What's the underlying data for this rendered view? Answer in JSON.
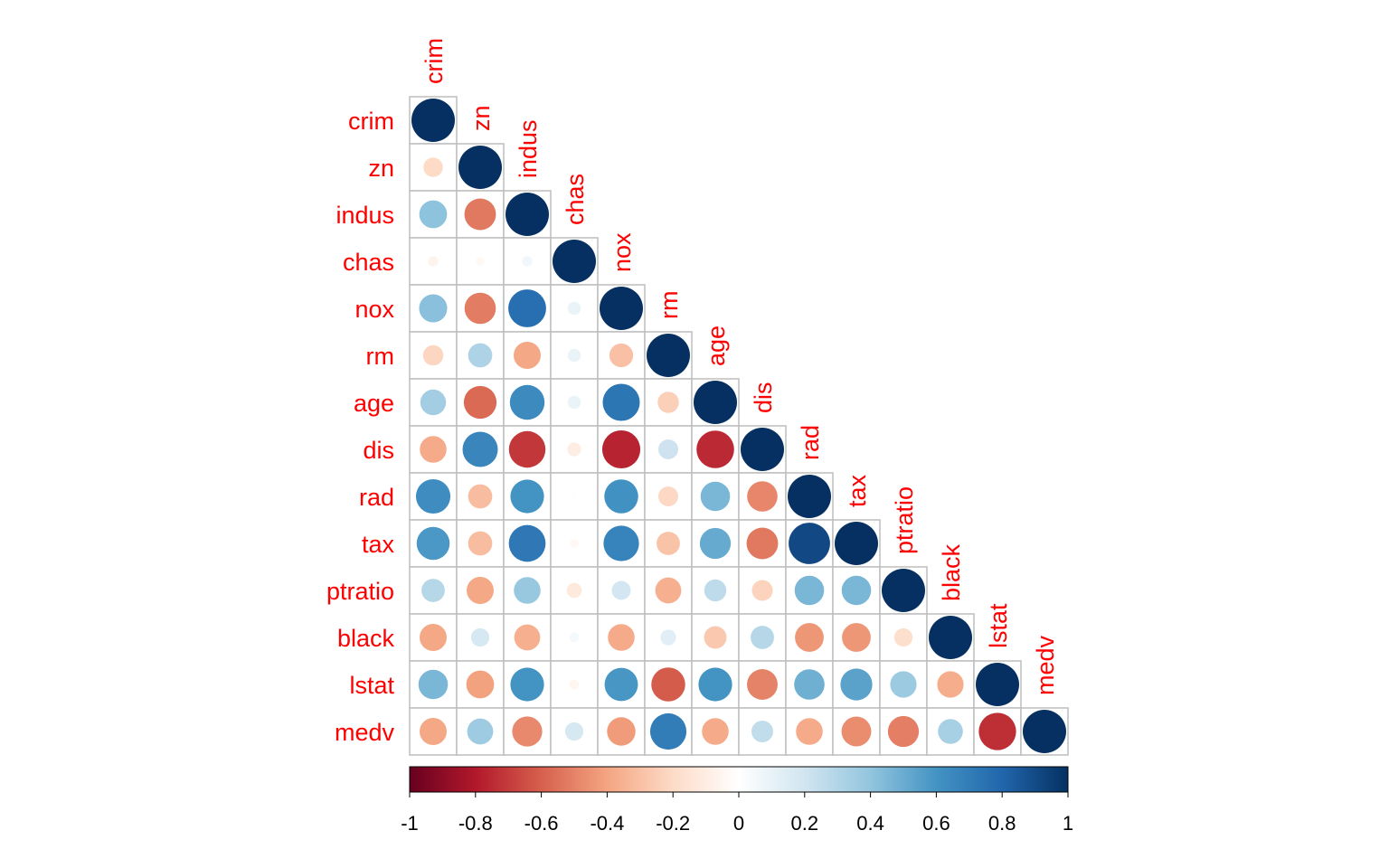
{
  "chart_data": {
    "type": "heatmap",
    "style": "corrplot-circle-lower",
    "variables": [
      "crim",
      "zn",
      "indus",
      "chas",
      "nox",
      "rm",
      "age",
      "dis",
      "rad",
      "tax",
      "ptratio",
      "black",
      "lstat",
      "medv"
    ],
    "matrix": [
      [
        1.0,
        -0.2,
        0.41,
        -0.06,
        0.42,
        -0.22,
        0.35,
        -0.38,
        0.63,
        0.58,
        0.29,
        -0.39,
        0.46,
        -0.39
      ],
      [
        -0.2,
        1.0,
        -0.53,
        -0.04,
        -0.52,
        0.31,
        -0.57,
        0.66,
        -0.31,
        -0.31,
        -0.39,
        0.18,
        -0.41,
        0.36
      ],
      [
        0.41,
        -0.53,
        1.0,
        0.06,
        0.76,
        -0.39,
        0.64,
        -0.71,
        0.6,
        0.72,
        0.38,
        -0.36,
        0.6,
        -0.48
      ],
      [
        -0.06,
        -0.04,
        0.06,
        1.0,
        0.09,
        0.09,
        0.09,
        -0.1,
        -0.01,
        -0.04,
        -0.12,
        0.05,
        -0.05,
        0.18
      ],
      [
        0.42,
        -0.52,
        0.76,
        0.09,
        1.0,
        -0.3,
        0.73,
        -0.77,
        0.61,
        0.67,
        0.19,
        -0.38,
        0.59,
        -0.43
      ],
      [
        -0.22,
        0.31,
        -0.39,
        0.09,
        -0.3,
        1.0,
        -0.24,
        0.21,
        -0.21,
        -0.29,
        -0.36,
        0.13,
        -0.61,
        0.7
      ],
      [
        0.35,
        -0.57,
        0.64,
        0.09,
        0.73,
        -0.24,
        1.0,
        -0.75,
        0.46,
        0.51,
        0.26,
        -0.27,
        0.6,
        -0.38
      ],
      [
        -0.38,
        0.66,
        -0.71,
        -0.1,
        -0.77,
        0.21,
        -0.75,
        1.0,
        -0.49,
        -0.53,
        -0.23,
        0.29,
        -0.5,
        0.25
      ],
      [
        0.63,
        -0.31,
        0.6,
        -0.01,
        0.61,
        -0.21,
        0.46,
        -0.49,
        1.0,
        0.91,
        0.46,
        -0.44,
        0.49,
        -0.38
      ],
      [
        0.58,
        -0.31,
        0.72,
        -0.04,
        0.67,
        -0.29,
        0.51,
        -0.53,
        0.91,
        1.0,
        0.46,
        -0.44,
        0.54,
        -0.47
      ],
      [
        0.29,
        -0.39,
        0.38,
        -0.12,
        0.19,
        -0.36,
        0.26,
        -0.23,
        0.46,
        0.46,
        1.0,
        -0.18,
        0.37,
        -0.51
      ],
      [
        -0.39,
        0.18,
        -0.36,
        0.05,
        -0.38,
        0.13,
        -0.27,
        0.29,
        -0.44,
        -0.44,
        -0.18,
        1.0,
        -0.37,
        0.33
      ],
      [
        0.46,
        -0.41,
        0.6,
        -0.05,
        0.59,
        -0.61,
        0.6,
        -0.5,
        0.49,
        0.54,
        0.37,
        -0.37,
        1.0,
        -0.74
      ],
      [
        -0.39,
        0.36,
        -0.48,
        0.18,
        -0.43,
        0.7,
        -0.38,
        0.25,
        -0.38,
        -0.47,
        -0.51,
        0.33,
        -0.74,
        1.0
      ]
    ],
    "color_scale": {
      "min": -1,
      "max": 1,
      "stops": [
        "#67001F",
        "#B2182B",
        "#D6604D",
        "#F4A582",
        "#FDDBC7",
        "#FFFFFF",
        "#D1E5F0",
        "#92C5DE",
        "#4393C3",
        "#2166AC",
        "#053061"
      ],
      "tick_labels": [
        "-1",
        "-0.8",
        "-0.6",
        "-0.4",
        "-0.2",
        "0",
        "0.2",
        "0.4",
        "0.6",
        "0.8",
        "1"
      ]
    },
    "label_color": "#FF0000",
    "grid_color": "#BEBEBE",
    "legend": "bottom"
  }
}
